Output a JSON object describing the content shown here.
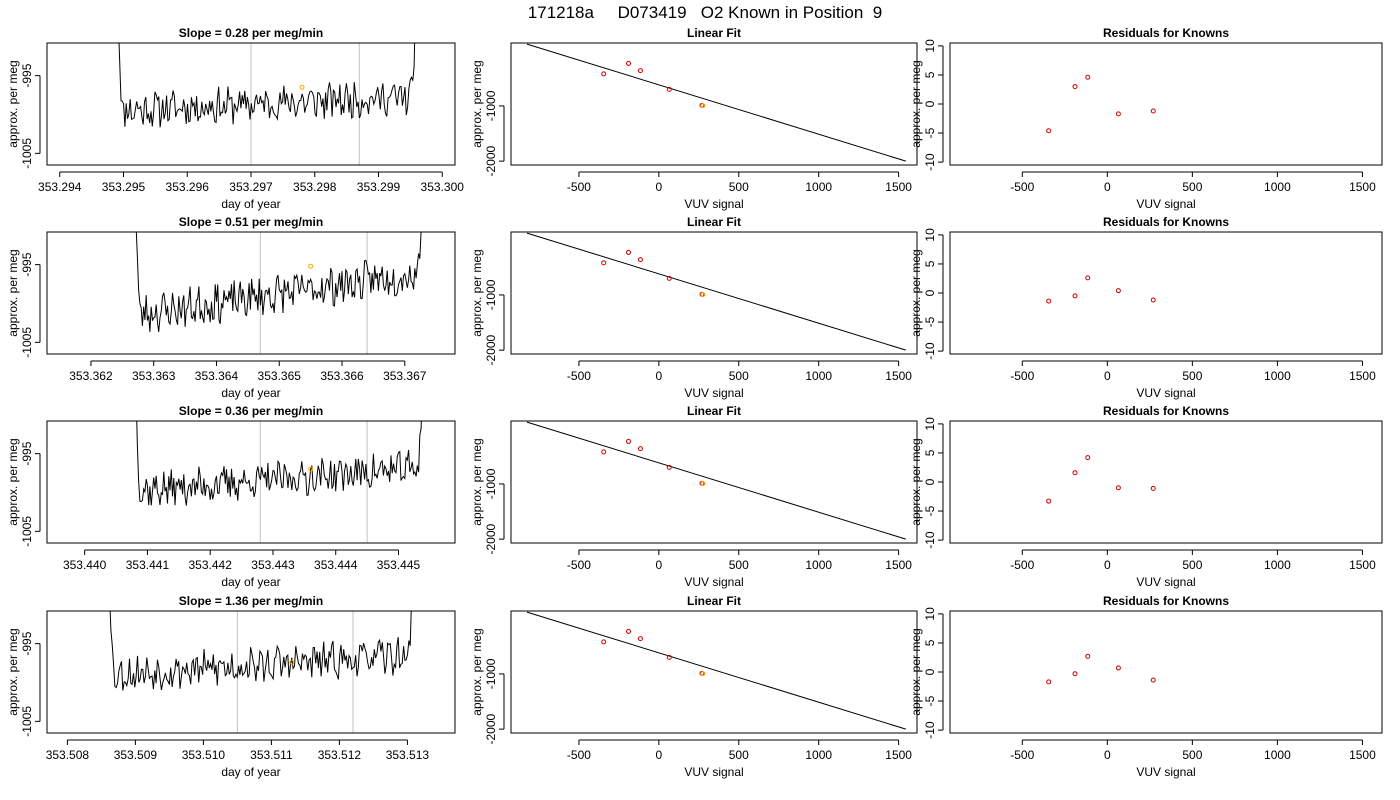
{
  "page_title": "171218a     D073419   O2 Known in Position  9",
  "colors": {
    "line": "#000000",
    "frame": "#000000",
    "vline": "#cccccc",
    "point": "#cc0000",
    "highlight": "#ffa500"
  },
  "chart_data": [
    {
      "type": "line",
      "title": "Slope =  0.28  per meg/min",
      "xlabel": "day of year",
      "ylabel": "approx. per meg",
      "xlim": [
        353.2938,
        353.3002
      ],
      "ylim": [
        -1006.5,
        -990.8
      ],
      "x_ticks": [
        353.294,
        353.295,
        353.296,
        353.297,
        353.298,
        353.299,
        353.3
      ],
      "x_tick_labels": [
        "353.294",
        "353.295",
        "353.296",
        "353.297",
        "353.298",
        "353.299",
        "353.300"
      ],
      "y_ticks": [
        -1005,
        -995
      ],
      "y_tick_labels": [
        "-1005",
        "-995"
      ],
      "vlines": [
        353.297,
        353.2987
      ],
      "highlight_point": {
        "x": 353.2978,
        "y": -996.5
      },
      "x_start": 353.2949,
      "x_end": 353.2996,
      "seed": 11,
      "base": -999.5,
      "trend": 1.8,
      "noise": 2.0,
      "spike_len": 0.0001
    },
    {
      "type": "scatter",
      "title": "Linear Fit",
      "xlabel": "VUV signal",
      "ylabel": "approx. per meg",
      "xlim": [
        -925,
        1615
      ],
      "ylim": [
        -2070,
        140
      ],
      "x_ticks": [
        -500,
        0,
        500,
        1000,
        1500
      ],
      "x_tick_labels": [
        "-500",
        "0",
        "500",
        "1000",
        "1500"
      ],
      "y_ticks": [
        -2000,
        -1000
      ],
      "y_tick_labels": [
        "-2000",
        "-1000"
      ],
      "fit_line": {
        "x": [
          -825,
          1545
        ],
        "y": [
          120,
          -2000
        ]
      },
      "points": [
        {
          "x": -345,
          "y": -420
        },
        {
          "x": -190,
          "y": -230
        },
        {
          "x": -115,
          "y": -360
        },
        {
          "x": 65,
          "y": -700
        },
        {
          "x": 270,
          "y": -990
        }
      ],
      "highlight_point": {
        "x": 275,
        "y": -995
      }
    },
    {
      "type": "scatter",
      "title": "Residuals for Knowns",
      "xlabel": "VUV signal",
      "ylabel": "approx. per meg",
      "xlim": [
        -925,
        1615
      ],
      "ylim": [
        -10.5,
        10.5
      ],
      "x_ticks": [
        -500,
        0,
        500,
        1000,
        1500
      ],
      "x_tick_labels": [
        "-500",
        "0",
        "500",
        "1000",
        "1500"
      ],
      "y_ticks": [
        -10,
        -5,
        0,
        5,
        10
      ],
      "y_tick_labels": [
        "-10",
        "-5",
        "0",
        "5",
        "10"
      ],
      "points": [
        {
          "x": -345,
          "y": -4.6
        },
        {
          "x": -190,
          "y": 3.0
        },
        {
          "x": -115,
          "y": 4.6
        },
        {
          "x": 65,
          "y": -1.7
        },
        {
          "x": 270,
          "y": -1.2
        }
      ]
    },
    {
      "type": "line",
      "title": "Slope =  0.51  per meg/min",
      "xlabel": "day of year",
      "ylabel": "approx. per meg",
      "xlim": [
        353.3613,
        353.3678
      ],
      "ylim": [
        -1006.5,
        -990.8
      ],
      "x_ticks": [
        353.362,
        353.363,
        353.364,
        353.365,
        353.366,
        353.367
      ],
      "x_tick_labels": [
        "353.362",
        "353.363",
        "353.364",
        "353.365",
        "353.366",
        "353.367"
      ],
      "y_ticks": [
        -1005,
        -995
      ],
      "y_tick_labels": [
        "-1005",
        "-995"
      ],
      "vlines": [
        353.3647,
        353.3664
      ],
      "highlight_point": {
        "x": 353.3655,
        "y": -995.2
      },
      "x_start": 353.3627,
      "x_end": 353.3673,
      "seed": 23,
      "base": -1001.5,
      "trend": 5.5,
      "noise": 2.2,
      "spike_len": 0.0001
    },
    {
      "type": "scatter",
      "title": "Linear Fit",
      "xlabel": "VUV signal",
      "ylabel": "approx. per meg",
      "xlim": [
        -925,
        1615
      ],
      "ylim": [
        -2070,
        140
      ],
      "x_ticks": [
        -500,
        0,
        500,
        1000,
        1500
      ],
      "x_tick_labels": [
        "-500",
        "0",
        "500",
        "1000",
        "1500"
      ],
      "y_ticks": [
        -2000,
        -1000
      ],
      "y_tick_labels": [
        "-2000",
        "-1000"
      ],
      "fit_line": {
        "x": [
          -825,
          1545
        ],
        "y": [
          120,
          -2000
        ]
      },
      "points": [
        {
          "x": -345,
          "y": -420
        },
        {
          "x": -190,
          "y": -230
        },
        {
          "x": -115,
          "y": -360
        },
        {
          "x": 65,
          "y": -700
        },
        {
          "x": 270,
          "y": -990
        }
      ],
      "highlight_point": {
        "x": 275,
        "y": -995
      }
    },
    {
      "type": "scatter",
      "title": "Residuals for Knowns",
      "xlabel": "VUV signal",
      "ylabel": "approx. per meg",
      "xlim": [
        -925,
        1615
      ],
      "ylim": [
        -10.5,
        10.5
      ],
      "x_ticks": [
        -500,
        0,
        500,
        1000,
        1500
      ],
      "x_tick_labels": [
        "-500",
        "0",
        "500",
        "1000",
        "1500"
      ],
      "y_ticks": [
        -10,
        -5,
        0,
        5,
        10
      ],
      "y_tick_labels": [
        "-10",
        "-5",
        "0",
        "5",
        "10"
      ],
      "points": [
        {
          "x": -345,
          "y": -1.4
        },
        {
          "x": -190,
          "y": -0.5
        },
        {
          "x": -115,
          "y": 2.6
        },
        {
          "x": 65,
          "y": 0.4
        },
        {
          "x": 270,
          "y": -1.2
        }
      ]
    },
    {
      "type": "line",
      "title": "Slope =  0.36  per meg/min",
      "xlabel": "day of year",
      "ylabel": "approx. per meg",
      "xlim": [
        353.4394,
        353.4459
      ],
      "ylim": [
        -1006.5,
        -990.8
      ],
      "x_ticks": [
        353.44,
        353.441,
        353.442,
        353.443,
        353.444,
        353.445
      ],
      "x_tick_labels": [
        "353.440",
        "353.441",
        "353.442",
        "353.443",
        "353.444",
        "353.445"
      ],
      "y_ticks": [
        -1005,
        -995
      ],
      "y_tick_labels": [
        "-1005",
        "-995"
      ],
      "vlines": [
        353.4428,
        353.4445
      ],
      "highlight_point": {
        "x": 353.4436,
        "y": -997.0
      },
      "x_start": 353.4408,
      "x_end": 353.4454,
      "seed": 37,
      "base": -999.8,
      "trend": 3.0,
      "noise": 2.0,
      "spike_len": 0.0001
    },
    {
      "type": "scatter",
      "title": "Linear Fit",
      "xlabel": "VUV signal",
      "ylabel": "approx. per meg",
      "xlim": [
        -925,
        1615
      ],
      "ylim": [
        -2070,
        140
      ],
      "x_ticks": [
        -500,
        0,
        500,
        1000,
        1500
      ],
      "x_tick_labels": [
        "-500",
        "0",
        "500",
        "1000",
        "1500"
      ],
      "y_ticks": [
        -2000,
        -1000
      ],
      "y_tick_labels": [
        "-2000",
        "-1000"
      ],
      "fit_line": {
        "x": [
          -825,
          1545
        ],
        "y": [
          120,
          -2000
        ]
      },
      "points": [
        {
          "x": -345,
          "y": -420
        },
        {
          "x": -190,
          "y": -230
        },
        {
          "x": -115,
          "y": -360
        },
        {
          "x": 65,
          "y": -700
        },
        {
          "x": 270,
          "y": -990
        }
      ],
      "highlight_point": {
        "x": 275,
        "y": -995
      }
    },
    {
      "type": "scatter",
      "title": "Residuals for Knowns",
      "xlabel": "VUV signal",
      "ylabel": "approx. per meg",
      "xlim": [
        -925,
        1615
      ],
      "ylim": [
        -10.5,
        10.5
      ],
      "x_ticks": [
        -500,
        0,
        500,
        1000,
        1500
      ],
      "x_tick_labels": [
        "-500",
        "0",
        "500",
        "1000",
        "1500"
      ],
      "y_ticks": [
        -10,
        -5,
        0,
        5,
        10
      ],
      "y_tick_labels": [
        "-10",
        "-5",
        "0",
        "5",
        "10"
      ],
      "points": [
        {
          "x": -345,
          "y": -3.3
        },
        {
          "x": -190,
          "y": 1.6
        },
        {
          "x": -115,
          "y": 4.2
        },
        {
          "x": 65,
          "y": -1.0
        },
        {
          "x": 270,
          "y": -1.1
        }
      ]
    },
    {
      "type": "line",
      "title": "Slope =  1.36  per meg/min",
      "xlabel": "day of year",
      "ylabel": "approx. per meg",
      "xlim": [
        353.5077,
        353.5137
      ],
      "ylim": [
        -1006.5,
        -990.8
      ],
      "x_ticks": [
        353.508,
        353.509,
        353.51,
        353.511,
        353.512,
        353.513
      ],
      "x_tick_labels": [
        "353.508",
        "353.509",
        "353.510",
        "353.511",
        "353.512",
        "353.513"
      ],
      "y_ticks": [
        -1005,
        -995
      ],
      "y_tick_labels": [
        "-1005",
        "-995"
      ],
      "vlines": [
        353.5105,
        353.5122
      ],
      "highlight_point": {
        "x": 353.5113,
        "y": -997.4
      },
      "x_start": 353.5086,
      "x_end": 353.5131,
      "seed": 53,
      "base": -999.0,
      "trend": 2.5,
      "noise": 2.0,
      "spike_len": 0.0001
    },
    {
      "type": "scatter",
      "title": "Linear Fit",
      "xlabel": "VUV signal",
      "ylabel": "approx. per meg",
      "xlim": [
        -925,
        1615
      ],
      "ylim": [
        -2070,
        140
      ],
      "x_ticks": [
        -500,
        0,
        500,
        1000,
        1500
      ],
      "x_tick_labels": [
        "-500",
        "0",
        "500",
        "1000",
        "1500"
      ],
      "y_ticks": [
        -2000,
        -1000
      ],
      "y_tick_labels": [
        "-2000",
        "-1000"
      ],
      "fit_line": {
        "x": [
          -825,
          1545
        ],
        "y": [
          120,
          -2000
        ]
      },
      "points": [
        {
          "x": -345,
          "y": -420
        },
        {
          "x": -190,
          "y": -230
        },
        {
          "x": -115,
          "y": -360
        },
        {
          "x": 65,
          "y": -700
        },
        {
          "x": 270,
          "y": -990
        }
      ],
      "highlight_point": {
        "x": 275,
        "y": -995
      }
    },
    {
      "type": "scatter",
      "title": "Residuals for Knowns",
      "xlabel": "VUV signal",
      "ylabel": "approx. per meg",
      "xlim": [
        -925,
        1615
      ],
      "ylim": [
        -10.5,
        10.5
      ],
      "x_ticks": [
        -500,
        0,
        500,
        1000,
        1500
      ],
      "x_tick_labels": [
        "-500",
        "0",
        "500",
        "1000",
        "1500"
      ],
      "y_ticks": [
        -10,
        -5,
        0,
        5,
        10
      ],
      "y_tick_labels": [
        "-10",
        "-5",
        "0",
        "5",
        "10"
      ],
      "points": [
        {
          "x": -345,
          "y": -1.7
        },
        {
          "x": -190,
          "y": -0.3
        },
        {
          "x": -115,
          "y": 2.7
        },
        {
          "x": 65,
          "y": 0.7
        },
        {
          "x": 270,
          "y": -1.4
        }
      ]
    }
  ]
}
